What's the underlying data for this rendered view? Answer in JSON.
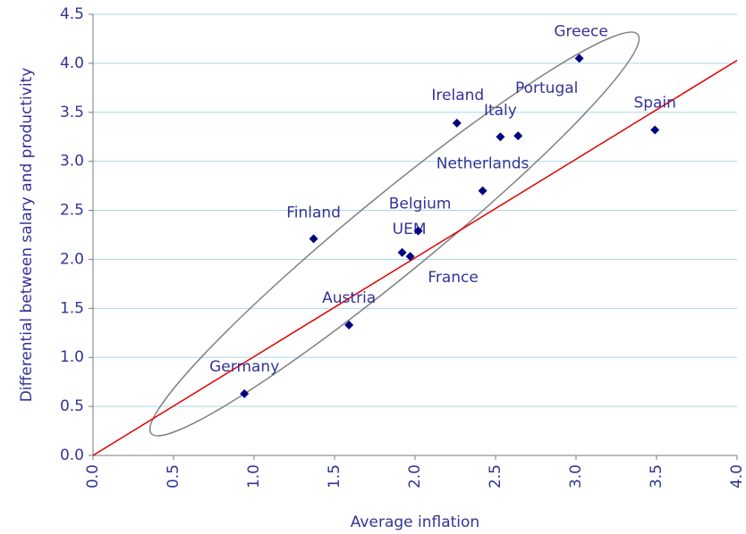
{
  "chart_data": {
    "type": "scatter",
    "x_label": "Average inflation",
    "y_label": "Differential between salary and productivity",
    "points": [
      {
        "name": "Germany",
        "x": 0.94,
        "y": 0.63
      },
      {
        "name": "Austria",
        "x": 1.59,
        "y": 1.33
      },
      {
        "name": "Finland",
        "x": 1.37,
        "y": 2.21
      },
      {
        "name": "UEM",
        "x": 1.92,
        "y": 2.07
      },
      {
        "name": "France",
        "x": 1.97,
        "y": 2.03
      },
      {
        "name": "Belgium",
        "x": 2.02,
        "y": 2.29
      },
      {
        "name": "Netherlands",
        "x": 2.42,
        "y": 2.7
      },
      {
        "name": "Ireland",
        "x": 2.26,
        "y": 3.39
      },
      {
        "name": "Italy",
        "x": 2.53,
        "y": 3.25
      },
      {
        "name": "Portugal",
        "x": 2.64,
        "y": 3.26
      },
      {
        "name": "Greece",
        "x": 3.02,
        "y": 4.05
      },
      {
        "name": "Spain",
        "x": 3.49,
        "y": 3.32
      }
    ],
    "color": "#000080",
    "trend_line": {
      "x": [
        0,
        4.0
      ],
      "y": [
        0,
        4.03
      ],
      "color": "#e00000"
    },
    "xlim": [
      0,
      4.0
    ],
    "ylim": [
      0,
      4.5
    ],
    "xticks": [
      {
        "value": 0,
        "label": "0.0"
      },
      0.5,
      {
        "value": 1,
        "label": "1.0"
      },
      1.5,
      {
        "value": 2,
        "label": "2.0"
      },
      2.5,
      {
        "value": 3,
        "label": "3.0"
      },
      3.5,
      {
        "value": 4,
        "label": "4.0"
      }
    ],
    "yticks": [
      {
        "value": 0,
        "label": "0.0"
      },
      0.5,
      {
        "value": 1,
        "label": "1.0"
      },
      1.5,
      {
        "value": 2,
        "label": "2.0"
      },
      2.5,
      {
        "value": 3,
        "label": "3.0"
      },
      3.5,
      {
        "value": 4,
        "label": "4.0"
      },
      4.5
    ],
    "grid": true
  }
}
